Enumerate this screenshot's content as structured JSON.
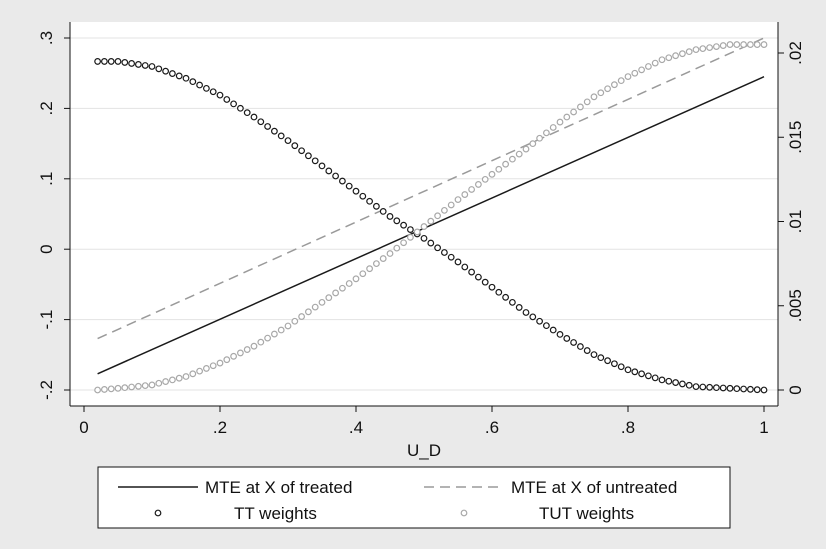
{
  "chart_data": {
    "type": "line",
    "x_title": "U_D",
    "x_ticks": [
      "0",
      ".2",
      ".4",
      ".6",
      ".8",
      "1"
    ],
    "xlim": [
      0,
      1
    ],
    "y_left_ticks": [
      "-.2",
      "-.1",
      "0",
      ".1",
      ".2",
      ".3"
    ],
    "y_left_lim": [
      -0.2,
      0.3
    ],
    "y_right_ticks": [
      "0",
      ".005",
      ".01",
      ".015",
      ".02"
    ],
    "y_right_lim": [
      0,
      0.02
    ],
    "grid": true,
    "legend_position": "bottom",
    "series": [
      {
        "name": "MTE at X of treated",
        "axis": "left",
        "style": "solid",
        "color": "#1a1a1a",
        "x": [
          0.02,
          1.0
        ],
        "y": [
          -0.177,
          0.245
        ]
      },
      {
        "name": "MTE at X of untreated",
        "axis": "left",
        "style": "dashed",
        "color": "#9a9a9a",
        "x": [
          0.02,
          1.0
        ],
        "y": [
          -0.127,
          0.3
        ]
      },
      {
        "name": "TT weights",
        "axis": "right",
        "style": "markers",
        "color": "#1a1a1a",
        "x": [
          0.02,
          0.05,
          0.1,
          0.15,
          0.2,
          0.25,
          0.3,
          0.35,
          0.4,
          0.45,
          0.5,
          0.55,
          0.6,
          0.65,
          0.7,
          0.75,
          0.8,
          0.85,
          0.9,
          0.95,
          1.0
        ],
        "y": [
          0.0195,
          0.0195,
          0.0192,
          0.0185,
          0.0175,
          0.0162,
          0.0148,
          0.0133,
          0.0118,
          0.0103,
          0.009,
          0.0076,
          0.0061,
          0.0046,
          0.0033,
          0.0021,
          0.0012,
          0.0006,
          0.0002,
          0.0001,
          0.0
        ]
      },
      {
        "name": "TUT weights",
        "axis": "right",
        "style": "markers",
        "color": "#a8a8a8",
        "x": [
          0.02,
          0.05,
          0.1,
          0.15,
          0.2,
          0.25,
          0.3,
          0.35,
          0.4,
          0.45,
          0.5,
          0.55,
          0.6,
          0.65,
          0.7,
          0.75,
          0.8,
          0.85,
          0.9,
          0.95,
          1.0
        ],
        "y": [
          0.0,
          0.0001,
          0.0003,
          0.0008,
          0.0016,
          0.0026,
          0.0038,
          0.0052,
          0.0066,
          0.0081,
          0.0097,
          0.0113,
          0.0128,
          0.0143,
          0.0159,
          0.0174,
          0.0186,
          0.0196,
          0.0202,
          0.0205,
          0.0205
        ]
      }
    ]
  },
  "legend": {
    "items": [
      {
        "label": "MTE at X of treated",
        "style": "solid"
      },
      {
        "label": "MTE at X of untreated",
        "style": "dashed"
      },
      {
        "label": "TT weights",
        "style": "marker-dark"
      },
      {
        "label": "TUT weights",
        "style": "marker-light"
      }
    ]
  }
}
